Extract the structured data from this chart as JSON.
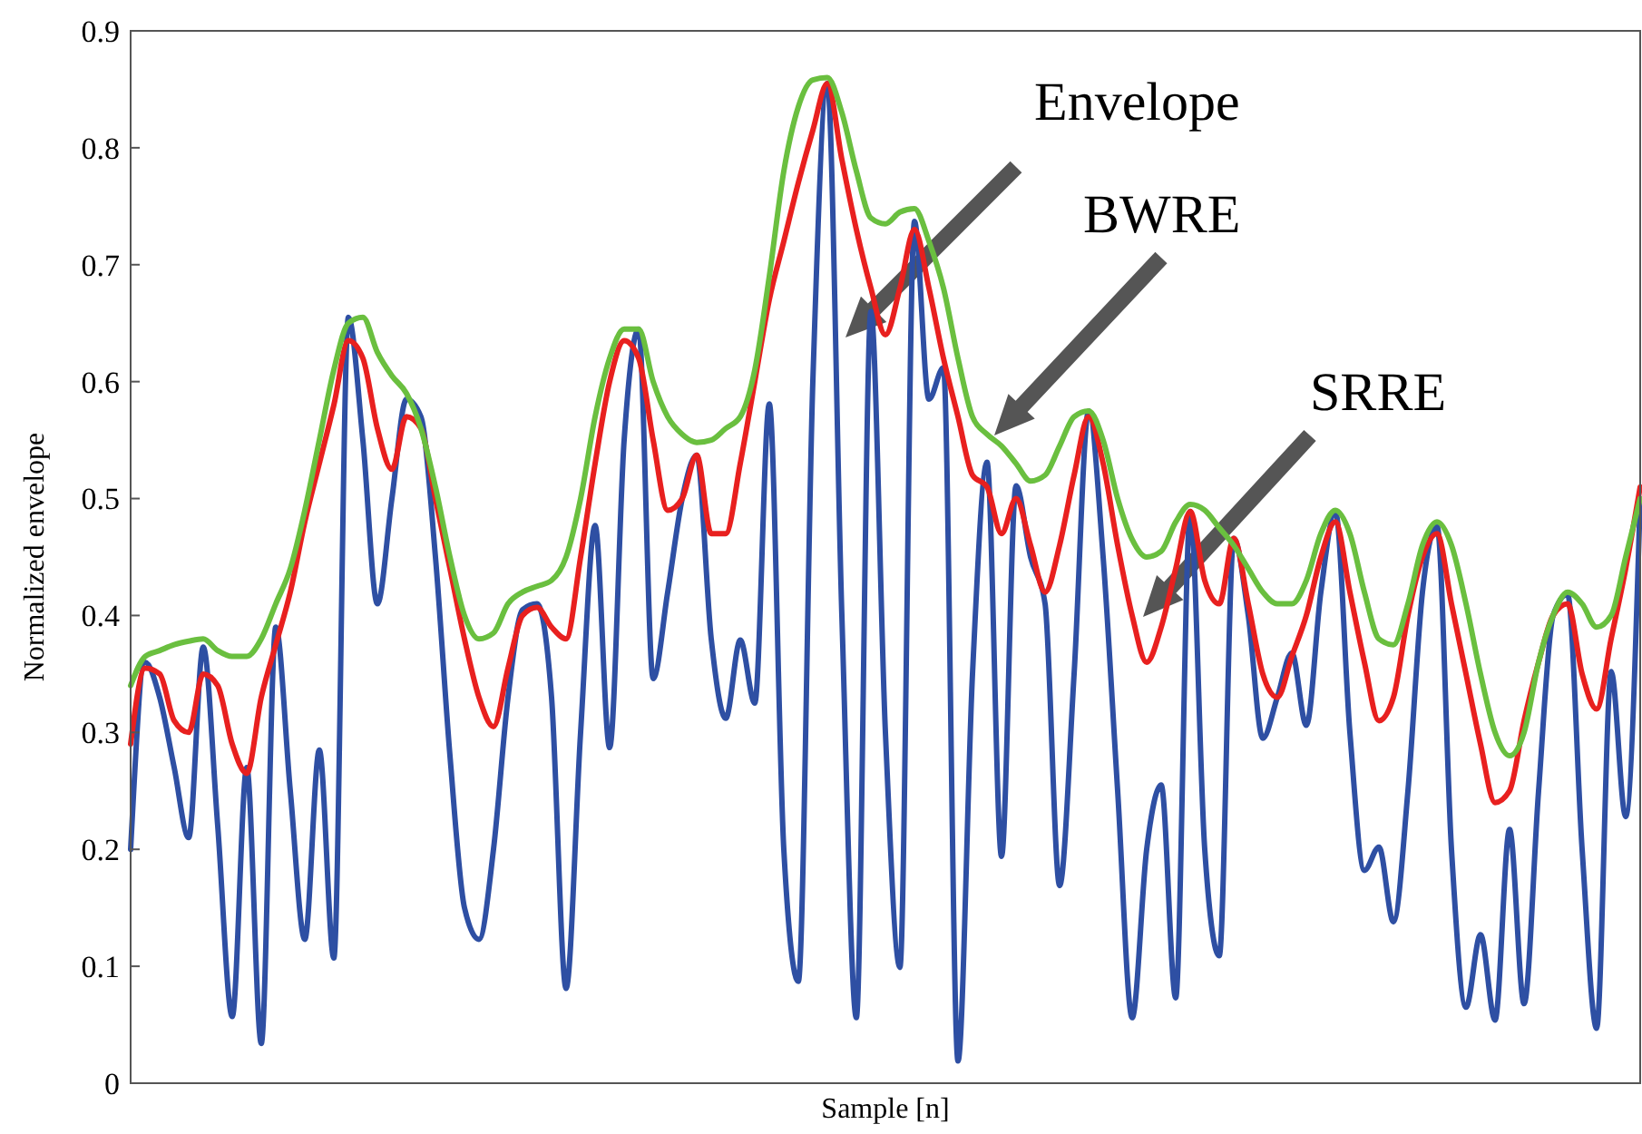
{
  "chart_data": {
    "type": "line",
    "xlabel": "Sample [n]",
    "ylabel": "Normalized envelope",
    "categories": [
      null,
      null,
      null,
      null,
      null,
      null,
      null,
      null,
      null,
      null,
      null,
      null,
      null,
      null,
      null,
      null,
      null,
      null,
      null,
      null,
      null,
      null,
      null,
      null,
      null,
      null,
      null,
      null,
      null,
      null,
      null,
      null,
      null,
      null,
      null,
      null,
      null,
      null,
      null,
      null,
      null,
      null,
      null,
      null,
      null,
      null,
      null,
      null,
      null,
      null,
      null,
      null,
      null,
      null,
      null,
      null,
      null,
      null,
      null,
      null,
      null,
      null,
      null,
      null,
      null,
      null,
      null,
      null,
      null,
      null,
      null,
      null,
      null,
      null,
      null,
      null,
      null,
      null,
      null,
      null,
      null,
      null,
      null,
      null,
      null,
      null,
      null,
      null,
      null,
      null,
      null,
      null,
      null,
      null,
      null,
      null,
      null,
      null,
      null,
      null,
      null,
      null,
      null,
      null,
      null
    ],
    "series": [
      {
        "color": "#2e4fa3",
        "values": [
          0.2,
          0.36,
          0.33,
          0.27,
          0.21,
          0.373,
          0.22,
          0.057,
          0.27,
          0.034,
          0.39,
          0.25,
          0.123,
          0.285,
          0.107,
          0.655,
          0.55,
          0.41,
          0.5,
          0.585,
          0.57,
          0.45,
          0.28,
          0.15,
          0.123,
          0.2,
          0.33,
          0.405,
          0.41,
          0.33,
          0.081,
          0.3,
          0.477,
          0.287,
          0.55,
          0.645,
          0.346,
          0.42,
          0.5,
          0.537,
          0.38,
          0.312,
          0.379,
          0.325,
          0.581,
          0.2,
          0.087,
          0.6,
          0.855,
          0.4,
          0.056,
          0.66,
          0.3,
          0.099,
          0.737,
          0.585,
          0.612,
          0.019,
          0.35,
          0.531,
          0.194,
          0.511,
          0.45,
          0.41,
          0.169,
          0.35,
          0.575,
          0.45,
          0.25,
          0.056,
          0.2,
          0.255,
          0.073,
          0.489,
          0.2,
          0.109,
          0.466,
          0.4,
          0.295,
          0.33,
          0.368,
          0.306,
          0.42,
          0.489,
          0.3,
          0.182,
          0.202,
          0.138,
          0.25,
          0.42,
          0.477,
          0.2,
          0.065,
          0.127,
          0.054,
          0.217,
          0.068,
          0.25,
          0.4,
          0.418,
          0.2,
          0.047,
          0.352,
          0.228,
          0.5
        ]
      },
      {
        "color": "#e8201f",
        "values": [
          0.29,
          0.355,
          0.35,
          0.31,
          0.3,
          0.35,
          0.34,
          0.29,
          0.265,
          0.33,
          0.375,
          0.42,
          0.48,
          0.53,
          0.58,
          0.635,
          0.62,
          0.56,
          0.525,
          0.57,
          0.56,
          0.5,
          0.44,
          0.38,
          0.33,
          0.305,
          0.355,
          0.4,
          0.407,
          0.39,
          0.38,
          0.45,
          0.53,
          0.6,
          0.635,
          0.62,
          0.55,
          0.49,
          0.5,
          0.537,
          0.47,
          0.47,
          0.53,
          0.6,
          0.67,
          0.72,
          0.77,
          0.815,
          0.855,
          0.79,
          0.73,
          0.68,
          0.64,
          0.68,
          0.73,
          0.68,
          0.62,
          0.57,
          0.52,
          0.51,
          0.47,
          0.5,
          0.46,
          0.42,
          0.46,
          0.52,
          0.57,
          0.53,
          0.46,
          0.4,
          0.36,
          0.39,
          0.44,
          0.489,
          0.43,
          0.41,
          0.466,
          0.41,
          0.35,
          0.33,
          0.365,
          0.4,
          0.45,
          0.48,
          0.42,
          0.36,
          0.31,
          0.33,
          0.4,
          0.45,
          0.47,
          0.41,
          0.35,
          0.29,
          0.24,
          0.25,
          0.31,
          0.36,
          0.4,
          0.41,
          0.35,
          0.32,
          0.38,
          0.44,
          0.51
        ]
      },
      {
        "color": "#6abf3f",
        "values": [
          0.34,
          0.365,
          0.37,
          0.375,
          0.378,
          0.38,
          0.37,
          0.365,
          0.365,
          0.38,
          0.41,
          0.44,
          0.49,
          0.55,
          0.61,
          0.65,
          0.655,
          0.625,
          0.605,
          0.59,
          0.56,
          0.51,
          0.45,
          0.4,
          0.38,
          0.385,
          0.41,
          0.42,
          0.425,
          0.43,
          0.45,
          0.5,
          0.57,
          0.62,
          0.645,
          0.645,
          0.6,
          0.57,
          0.555,
          0.548,
          0.55,
          0.56,
          0.57,
          0.61,
          0.69,
          0.78,
          0.835,
          0.858,
          0.86,
          0.83,
          0.78,
          0.74,
          0.735,
          0.745,
          0.748,
          0.72,
          0.68,
          0.62,
          0.57,
          0.555,
          0.545,
          0.53,
          0.515,
          0.52,
          0.545,
          0.57,
          0.575,
          0.55,
          0.5,
          0.465,
          0.45,
          0.455,
          0.48,
          0.495,
          0.49,
          0.475,
          0.46,
          0.44,
          0.42,
          0.41,
          0.41,
          0.43,
          0.47,
          0.49,
          0.47,
          0.42,
          0.38,
          0.375,
          0.41,
          0.46,
          0.48,
          0.46,
          0.41,
          0.35,
          0.3,
          0.28,
          0.3,
          0.36,
          0.4,
          0.42,
          0.41,
          0.39,
          0.4,
          0.45,
          0.5
        ]
      }
    ],
    "ylim": [
      0,
      0.9
    ],
    "yticks": [
      0,
      0.1,
      0.2,
      0.3,
      0.4,
      0.5,
      0.6,
      0.7,
      0.8,
      0.9
    ],
    "annotations": [
      "Envelope",
      "BWRE",
      "SRRE"
    ]
  }
}
